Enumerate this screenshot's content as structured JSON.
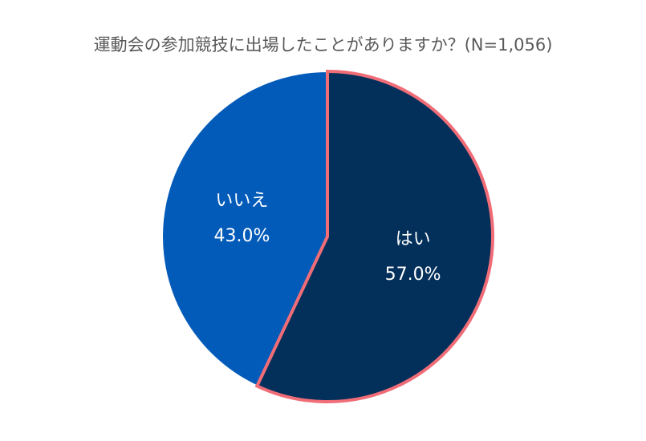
{
  "chart_data": {
    "type": "pie",
    "title": "運動会の参加競技に出場したことがありますか？(N=1,056)",
    "slices": [
      {
        "label": "はい",
        "value": 57.0,
        "percent_label": "57.0%",
        "color": "#03305a",
        "outline": "#f06d78"
      },
      {
        "label": "いいえ",
        "value": 43.0,
        "percent_label": "43.0%",
        "color": "#035bb9"
      }
    ],
    "start": "12 o'clock",
    "direction": "clockwise",
    "legend": "none"
  }
}
